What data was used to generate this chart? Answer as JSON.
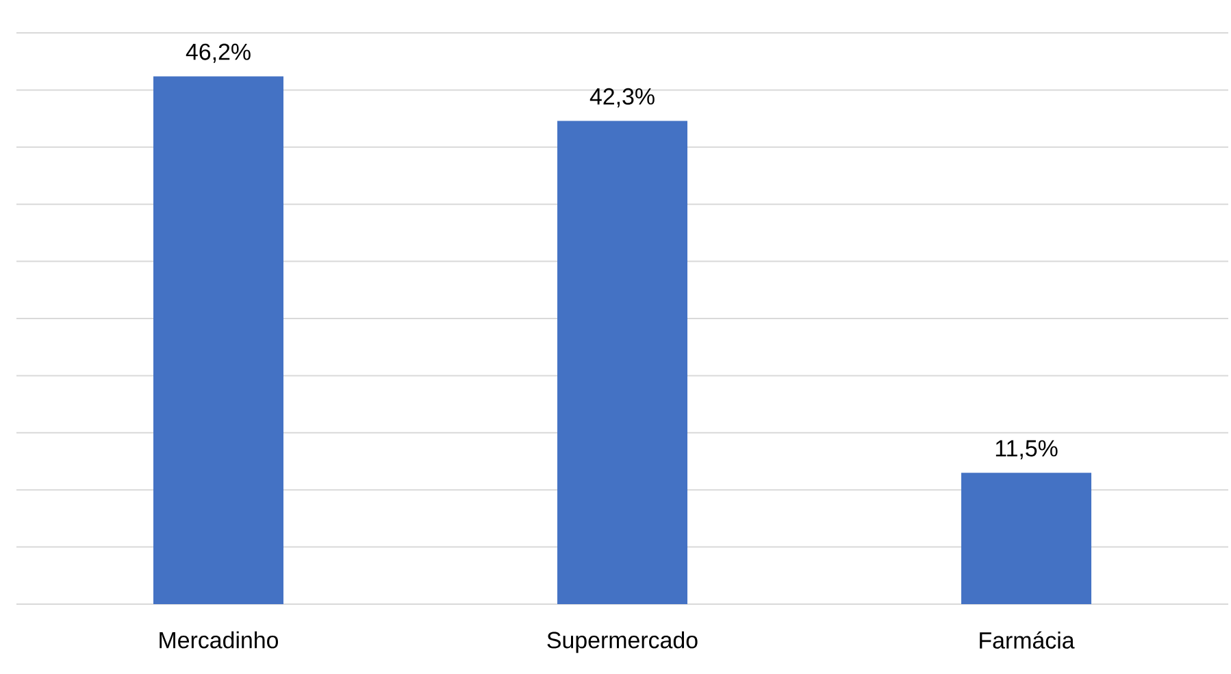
{
  "chart_data": {
    "type": "bar",
    "categories": [
      "Mercadinho",
      "Supermercado",
      "Farmácia"
    ],
    "values": [
      46.2,
      42.3,
      11.5
    ],
    "value_labels": [
      "46,2%",
      "42,3%",
      "11,5%"
    ],
    "color": "#4472c4",
    "ylim": [
      0,
      50
    ],
    "yticks": [
      0,
      5,
      10,
      15,
      20,
      25,
      30,
      35,
      40,
      45,
      50
    ],
    "grid": "y",
    "tick_labels": "x"
  }
}
